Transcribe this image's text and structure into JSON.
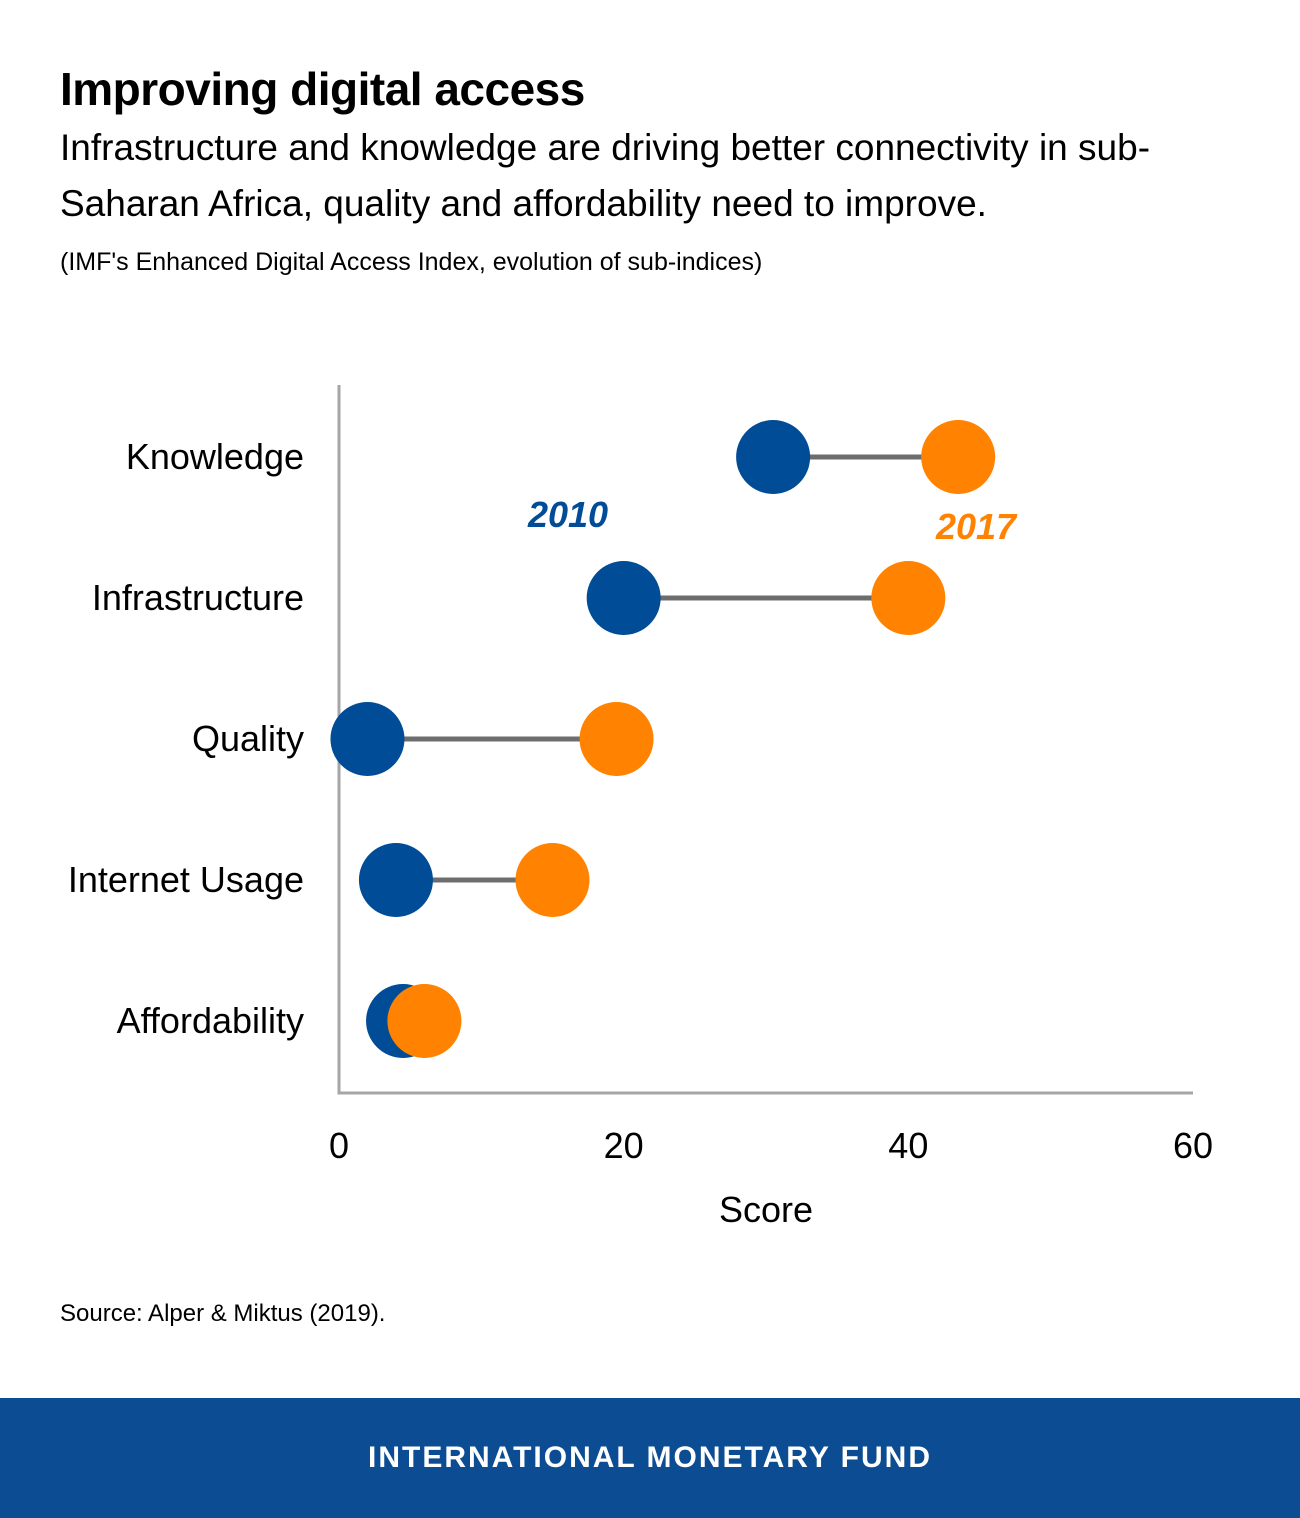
{
  "header": {
    "title": "Improving digital access",
    "subtitle": "Infrastructure and knowledge are driving better connectivity in sub-Saharan Africa, quality and affordability need to improve.",
    "note": "(IMF's Enhanced Digital Access Index, evolution of sub-indices)"
  },
  "chart_data": {
    "type": "dumbbell",
    "categories": [
      "Knowledge",
      "Infrastructure",
      "Quality",
      "Internet Usage",
      "Affordability"
    ],
    "series": [
      {
        "name": "2010",
        "values": [
          30.5,
          20,
          2,
          4,
          4.5
        ],
        "color": "#004c97"
      },
      {
        "name": "2017",
        "values": [
          43.5,
          40,
          19.5,
          15,
          6
        ],
        "color": "#ff8200"
      }
    ],
    "xlabel": "Score",
    "ylabel": "",
    "xlim": [
      0,
      60
    ],
    "xticks": [
      0,
      20,
      40,
      60
    ],
    "connector_color": "#6d6d6d",
    "axis_color": "#a6a6a6",
    "legend_placement": "inline-labels"
  },
  "source": "Source: Alper & Miktus (2019).",
  "footer": {
    "text": "INTERNATIONAL MONETARY FUND",
    "background": "#0b4c92"
  }
}
